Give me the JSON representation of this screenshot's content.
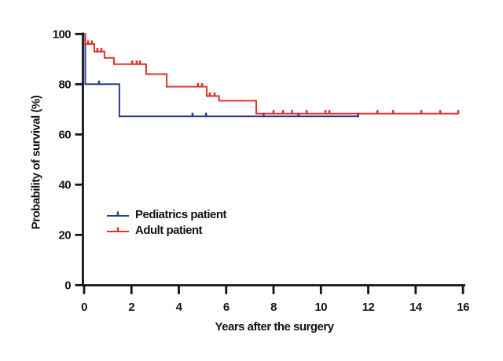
{
  "chart_data": {
    "type": "line",
    "subtype": "kaplan-meier-step-survival",
    "title": "",
    "xlabel": "Years after the surgery",
    "ylabel": "Probability of survival (%)",
    "xlim": [
      0,
      16.3
    ],
    "ylim": [
      0,
      100
    ],
    "xticks": [
      0,
      2,
      4,
      6,
      8,
      10,
      12,
      14,
      16
    ],
    "yticks": [
      0,
      20,
      40,
      60,
      80,
      100
    ],
    "grid": false,
    "legend_position": "inside-left-middle",
    "axis_color": "#141414",
    "series": [
      {
        "name": "Pediatrics patient",
        "color": "#2e3a92",
        "steps": [
          [
            0,
            100
          ],
          [
            0.05,
            80
          ],
          [
            1.49,
            67.2
          ]
        ],
        "end_x": 11.57,
        "censor_x": [
          0.63,
          4.58,
          5.15,
          7.58,
          9.05,
          11.57
        ]
      },
      {
        "name": "Adult patient",
        "color": "#e0312a",
        "steps": [
          [
            0,
            100
          ],
          [
            0.04,
            96
          ],
          [
            0.43,
            93
          ],
          [
            0.86,
            90.5
          ],
          [
            1.26,
            88
          ],
          [
            2.62,
            84
          ],
          [
            3.49,
            79
          ],
          [
            5.18,
            75.3
          ],
          [
            5.7,
            73.4
          ],
          [
            7.27,
            68.3
          ]
        ],
        "end_x": 15.8,
        "censor_x": [
          0.17,
          0.33,
          0.56,
          0.73,
          2.03,
          2.22,
          2.36,
          4.81,
          4.98,
          5.31,
          5.51,
          8.0,
          8.4,
          8.78,
          9.4,
          10.19,
          10.36,
          12.39,
          13.05,
          14.24,
          15.04,
          15.8
        ]
      }
    ]
  }
}
